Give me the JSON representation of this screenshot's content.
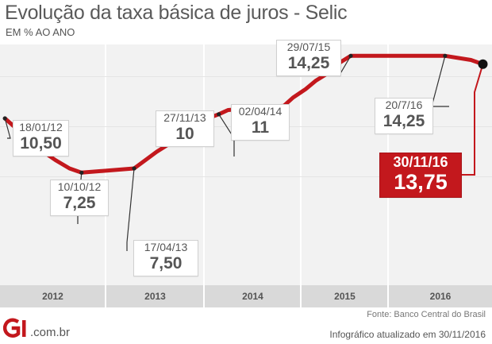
{
  "header": {
    "title": "Evolução da taxa básica de juros - Selic",
    "subtitle": "EM % AO ANO"
  },
  "chart_data": {
    "type": "line",
    "title": "Evolução da taxa básica de juros - Selic",
    "ylabel": "EM % AO ANO",
    "x_ticks": [
      "2012",
      "2013",
      "2014",
      "2015",
      "2016"
    ],
    "grid": true,
    "colors": {
      "line": "#c3181d",
      "highlight": "#c3181d",
      "background": "#f2f2f2",
      "year_bar": "#d9d9d9"
    },
    "series": [
      {
        "points": [
          {
            "x": "2012-01-18",
            "y": 10.5
          },
          {
            "x": "2012-03-07",
            "y": 9.75
          },
          {
            "x": "2012-04-18",
            "y": 9.0
          },
          {
            "x": "2012-05-30",
            "y": 8.5
          },
          {
            "x": "2012-07-11",
            "y": 8.0
          },
          {
            "x": "2012-08-29",
            "y": 7.5
          },
          {
            "x": "2012-10-10",
            "y": 7.25
          },
          {
            "x": "2013-04-17",
            "y": 7.5
          },
          {
            "x": "2013-05-29",
            "y": 8.0
          },
          {
            "x": "2013-07-10",
            "y": 8.5
          },
          {
            "x": "2013-08-28",
            "y": 9.0
          },
          {
            "x": "2013-10-09",
            "y": 9.5
          },
          {
            "x": "2013-11-27",
            "y": 10.0
          },
          {
            "x": "2014-01-15",
            "y": 10.5
          },
          {
            "x": "2014-02-26",
            "y": 10.75
          },
          {
            "x": "2014-04-02",
            "y": 11.0
          },
          {
            "x": "2014-10-29",
            "y": 11.25
          },
          {
            "x": "2014-12-03",
            "y": 11.75
          },
          {
            "x": "2015-01-21",
            "y": 12.25
          },
          {
            "x": "2015-03-04",
            "y": 12.75
          },
          {
            "x": "2015-04-29",
            "y": 13.25
          },
          {
            "x": "2015-06-03",
            "y": 13.75
          },
          {
            "x": "2015-07-29",
            "y": 14.25
          },
          {
            "x": "2016-07-20",
            "y": 14.25
          },
          {
            "x": "2016-10-19",
            "y": 14.0
          },
          {
            "x": "2016-11-30",
            "y": 13.75
          }
        ]
      }
    ],
    "annotations": [
      {
        "date": "18/01/12",
        "value": "10,50"
      },
      {
        "date": "10/10/12",
        "value": "7,25"
      },
      {
        "date": "17/04/13",
        "value": "7,50"
      },
      {
        "date": "27/11/13",
        "value": "10"
      },
      {
        "date": "02/04/14",
        "value": "11"
      },
      {
        "date": "29/07/15",
        "value": "14,25"
      },
      {
        "date": "20/7/16",
        "value": "14,25"
      },
      {
        "date": "30/11/16",
        "value": "13,75",
        "highlight": true
      }
    ]
  },
  "footer": {
    "source": "Fonte: Banco Central do Brasil",
    "logo_text": "G1",
    "domain": ".com.br",
    "updated": "Infográfico atualizado em 30/11/2016"
  }
}
